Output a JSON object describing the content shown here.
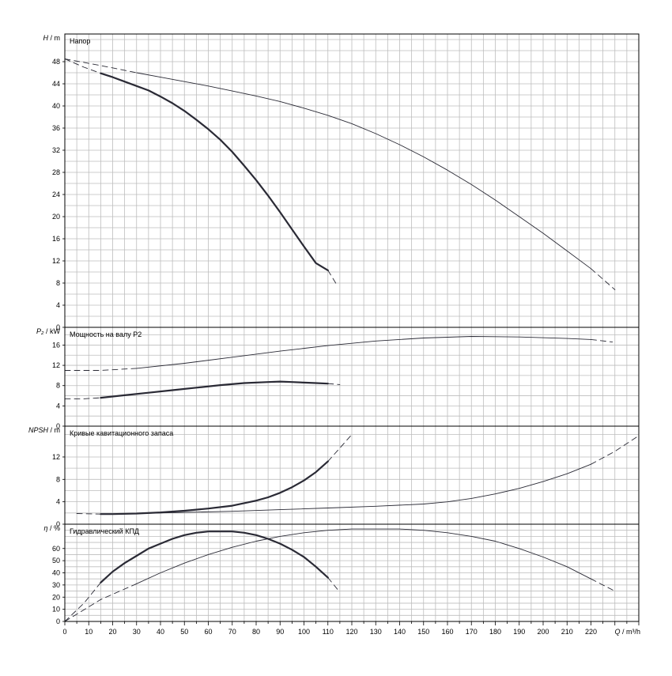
{
  "chart_data": [
    {
      "type": "line",
      "title": "Напор",
      "ylabel_symbol": "H",
      "ylabel_unit": "m",
      "xlim": [
        0,
        240
      ],
      "ylim": [
        0,
        53
      ],
      "yticks": [
        0,
        4,
        8,
        12,
        16,
        20,
        24,
        28,
        32,
        36,
        40,
        44,
        48
      ],
      "series": [
        {
          "style": "thick",
          "x": [
            15,
            20,
            25,
            30,
            35,
            40,
            45,
            50,
            55,
            60,
            65,
            70,
            75,
            80,
            85,
            90,
            95,
            100,
            105,
            110
          ],
          "values": [
            45.9,
            45.2,
            44.4,
            43.6,
            42.8,
            41.7,
            40.5,
            39.1,
            37.5,
            35.8,
            33.9,
            31.7,
            29.2,
            26.6,
            23.8,
            20.8,
            17.7,
            14.6,
            11.6,
            10.3
          ],
          "extrap_start": [
            [
              0,
              48.5
            ],
            [
              8,
              47.0
            ],
            [
              15,
              45.9
            ]
          ],
          "extrap_end": [
            [
              110,
              10.3
            ],
            [
              114,
              7.5
            ]
          ]
        },
        {
          "style": "thin",
          "x": [
            30,
            40,
            50,
            60,
            70,
            80,
            90,
            100,
            110,
            120,
            130,
            140,
            150,
            160,
            170,
            180,
            190,
            200,
            210,
            220
          ],
          "values": [
            46.0,
            45.2,
            44.4,
            43.6,
            42.7,
            41.8,
            40.8,
            39.6,
            38.3,
            36.8,
            35.0,
            33.0,
            30.8,
            28.4,
            25.8,
            23.0,
            20.0,
            17.0,
            13.8,
            10.6
          ],
          "extrap_start": [
            [
              0,
              48.5
            ],
            [
              15,
              47.3
            ],
            [
              30,
              46.0
            ]
          ],
          "extrap_end": [
            [
              220,
              10.6
            ],
            [
              230,
              6.8
            ]
          ]
        }
      ]
    },
    {
      "type": "line",
      "title": "Мощность на валу P2",
      "ylabel_symbol": "P₂",
      "ylabel_unit": "kW",
      "xlim": [
        0,
        240
      ],
      "ylim": [
        0,
        19.5
      ],
      "yticks": [
        0,
        4,
        8,
        12,
        16
      ],
      "series": [
        {
          "style": "thick",
          "x": [
            15,
            25,
            35,
            45,
            55,
            65,
            75,
            85,
            90,
            95,
            100,
            105,
            110
          ],
          "values": [
            5.6,
            6.1,
            6.6,
            7.1,
            7.6,
            8.1,
            8.5,
            8.7,
            8.8,
            8.7,
            8.6,
            8.5,
            8.4
          ],
          "extrap_start": [
            [
              0,
              5.4
            ],
            [
              8,
              5.4
            ],
            [
              15,
              5.6
            ]
          ],
          "extrap_end": [
            [
              110,
              8.4
            ],
            [
              115,
              8.2
            ]
          ]
        },
        {
          "style": "thin",
          "x": [
            30,
            50,
            70,
            90,
            110,
            130,
            150,
            170,
            190,
            210,
            220
          ],
          "values": [
            11.4,
            12.4,
            13.6,
            14.8,
            15.9,
            16.8,
            17.4,
            17.7,
            17.6,
            17.3,
            17.1
          ],
          "extrap_start": [
            [
              0,
              11.0
            ],
            [
              15,
              11.0
            ],
            [
              30,
              11.4
            ]
          ],
          "extrap_end": [
            [
              220,
              17.1
            ],
            [
              229,
              16.6
            ]
          ]
        }
      ]
    },
    {
      "type": "line",
      "title": "Кривые кавитационного запаса",
      "ylabel_symbol": "NPSH",
      "ylabel_unit": "m",
      "xlim": [
        0,
        240
      ],
      "ylim": [
        0,
        17.5
      ],
      "yticks": [
        0,
        4,
        8,
        12
      ],
      "series": [
        {
          "style": "thick",
          "x": [
            15,
            20,
            30,
            40,
            50,
            60,
            70,
            80,
            85,
            90,
            95,
            100,
            105,
            110
          ],
          "values": [
            1.8,
            1.8,
            1.9,
            2.1,
            2.4,
            2.8,
            3.3,
            4.2,
            4.8,
            5.6,
            6.6,
            7.8,
            9.3,
            11.2
          ],
          "extrap_start": [
            [
              5,
              1.9
            ],
            [
              15,
              1.8
            ]
          ],
          "extrap_end": [
            [
              110,
              11.2
            ],
            [
              115,
              13.6
            ],
            [
              120,
              16.0
            ]
          ]
        },
        {
          "style": "thin",
          "x": [
            30,
            50,
            70,
            90,
            110,
            130,
            150,
            160,
            170,
            180,
            190,
            200,
            210,
            220
          ],
          "values": [
            1.9,
            2.1,
            2.3,
            2.6,
            2.9,
            3.2,
            3.6,
            4.0,
            4.6,
            5.4,
            6.4,
            7.6,
            9.0,
            10.7
          ],
          "extrap_start": [
            [
              20,
              1.8
            ],
            [
              30,
              1.9
            ]
          ],
          "extrap_end": [
            [
              220,
              10.7
            ],
            [
              230,
              13.0
            ],
            [
              240,
              15.8
            ]
          ]
        }
      ]
    },
    {
      "type": "line",
      "title": "Гидравлический КПД",
      "ylabel_symbol": "η",
      "ylabel_unit": "%",
      "xlim": [
        0,
        240
      ],
      "ylim": [
        0,
        80
      ],
      "yticks": [
        0,
        10,
        20,
        30,
        40,
        50,
        60
      ],
      "series": [
        {
          "style": "thick",
          "x": [
            15,
            20,
            25,
            30,
            35,
            40,
            45,
            50,
            55,
            60,
            65,
            70,
            75,
            80,
            85,
            90,
            95,
            100,
            105,
            110
          ],
          "values": [
            32,
            41,
            48,
            54,
            60,
            64,
            68,
            71,
            73,
            74,
            74,
            74,
            73,
            71,
            68,
            64,
            59,
            53,
            45,
            36
          ],
          "extrap_start": [
            [
              0,
              0
            ],
            [
              8,
              15
            ],
            [
              15,
              32
            ]
          ],
          "extrap_end": [
            [
              110,
              36
            ],
            [
              115,
              24
            ]
          ]
        },
        {
          "style": "thin",
          "x": [
            30,
            40,
            50,
            60,
            70,
            80,
            90,
            100,
            110,
            120,
            130,
            140,
            150,
            160,
            170,
            180,
            190,
            200,
            210,
            220
          ],
          "values": [
            31,
            40,
            48,
            55,
            61,
            66,
            70,
            73,
            75,
            76,
            76,
            76,
            75,
            73,
            70,
            66,
            60,
            53,
            45,
            35
          ],
          "extrap_start": [
            [
              0,
              0
            ],
            [
              15,
              18
            ],
            [
              30,
              31
            ]
          ],
          "extrap_end": [
            [
              220,
              35
            ],
            [
              230,
              25
            ]
          ]
        }
      ]
    }
  ],
  "x_axis": {
    "ticks": [
      0,
      10,
      20,
      30,
      40,
      50,
      60,
      70,
      80,
      90,
      100,
      110,
      120,
      130,
      140,
      150,
      160,
      170,
      180,
      190,
      200,
      210,
      220
    ],
    "label_symbol": "Q",
    "label_unit": "m³/h"
  },
  "colors": {
    "curve": "#2a2a35",
    "grid": "#bdbdbd",
    "frame": "#000000"
  }
}
